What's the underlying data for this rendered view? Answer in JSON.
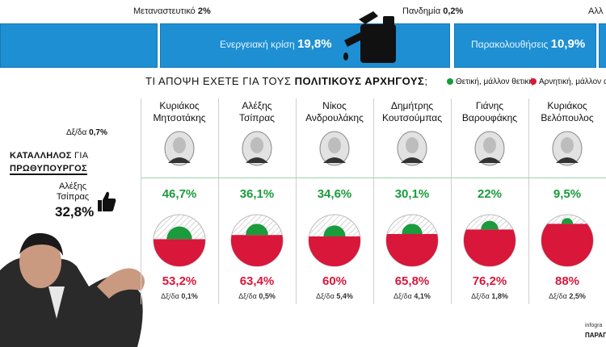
{
  "top_strip": {
    "items": [
      {
        "label": "Μεταναστευτικό",
        "value": "2%"
      },
      {
        "label": "Πανδημία",
        "value": "0,2%"
      },
      {
        "label": "Αλλ",
        "value": ""
      }
    ]
  },
  "blue_strip": {
    "items": [
      {
        "label": "Ενεργειακή κρίση",
        "value": "19,8%"
      },
      {
        "label": "Παρακολουθήσεις",
        "value": "10,9%"
      }
    ],
    "icon": "fuel-can-icon"
  },
  "question": {
    "text_plain": "ΤΙ ΑΠΟΨΗ ΕΧΕΤΕ ΓΙΑ ΤΟΥΣ",
    "text_bold": "ΠΟΛΙΤΙΚΟΥΣ ΑΡΧΗΓΟΥΣ",
    "suffix": ";"
  },
  "legend": {
    "positive": "Θετική, μάλλον θετική",
    "negative": "Αρνητική, μάλλον α",
    "positive_color": "#1a9b3c",
    "negative_color": "#d8173a"
  },
  "suitable_pm": {
    "dk_label": "Δξ/δα",
    "dk_value": "0,7%",
    "title_bold": "ΚΑΤΑΛΛΗΛΟΣ",
    "title_light": "ΓΙΑ",
    "title_line2": "ΠΡΩΘΥΠΟΥΡΓΟΣ",
    "name_line1": "Αλέξης",
    "name_line2": "Τσίπρας",
    "value": "32,8%",
    "icon": "thumbs-up-icon"
  },
  "chart_data": {
    "type": "pie",
    "title": "ΤΙ ΑΠΟΨΗ ΕΧΕΤΕ ΓΙΑ ΤΟΥΣ ΠΟΛΙΤΙΚΟΥΣ ΑΡΧΗΓΟΥΣ;",
    "series_names": [
      "Θετική, μάλλον θετική",
      "Αρνητική, μάλλον α"
    ],
    "leaders": [
      {
        "name1": "Κυριάκος",
        "name2": "Μητσοτάκης",
        "positive": 46.7,
        "positive_label": "46,7%",
        "negative": 53.2,
        "negative_label": "53,2%",
        "dk_label": "Δξ/δα",
        "dk": "0,1%"
      },
      {
        "name1": "Αλέξης",
        "name2": "Τσίπρας",
        "positive": 36.1,
        "positive_label": "36,1%",
        "negative": 63.4,
        "negative_label": "63,4%",
        "dk_label": "Δξ/δα",
        "dk": "0,5%"
      },
      {
        "name1": "Νίκος",
        "name2": "Ανδρουλάκης",
        "positive": 34.6,
        "positive_label": "34,6%",
        "negative": 60,
        "negative_label": "60%",
        "dk_label": "Δξ/δα",
        "dk": "5,4%"
      },
      {
        "name1": "Δημήτρης",
        "name2": "Κουτσούμπας",
        "positive": 30.1,
        "positive_label": "30,1%",
        "negative": 65.8,
        "negative_label": "65,8%",
        "dk_label": "Δξ/δα",
        "dk": "4,1%"
      },
      {
        "name1": "Γιάνης",
        "name2": "Βαρουφάκης",
        "positive": 22,
        "positive_label": "22%",
        "negative": 76.2,
        "negative_label": "76,2%",
        "dk_label": "Δξ/δα",
        "dk": "1,8%"
      },
      {
        "name1": "Κυριάκος",
        "name2": "Βελόπουλος",
        "positive": 9.5,
        "positive_label": "9,5%",
        "negative": 88,
        "negative_label": "88%",
        "dk_label": "Δξ/δα",
        "dk": "2,5%"
      }
    ]
  },
  "credit": {
    "line1": "infogra",
    "line2": "ΠΑΡΑΠ"
  }
}
